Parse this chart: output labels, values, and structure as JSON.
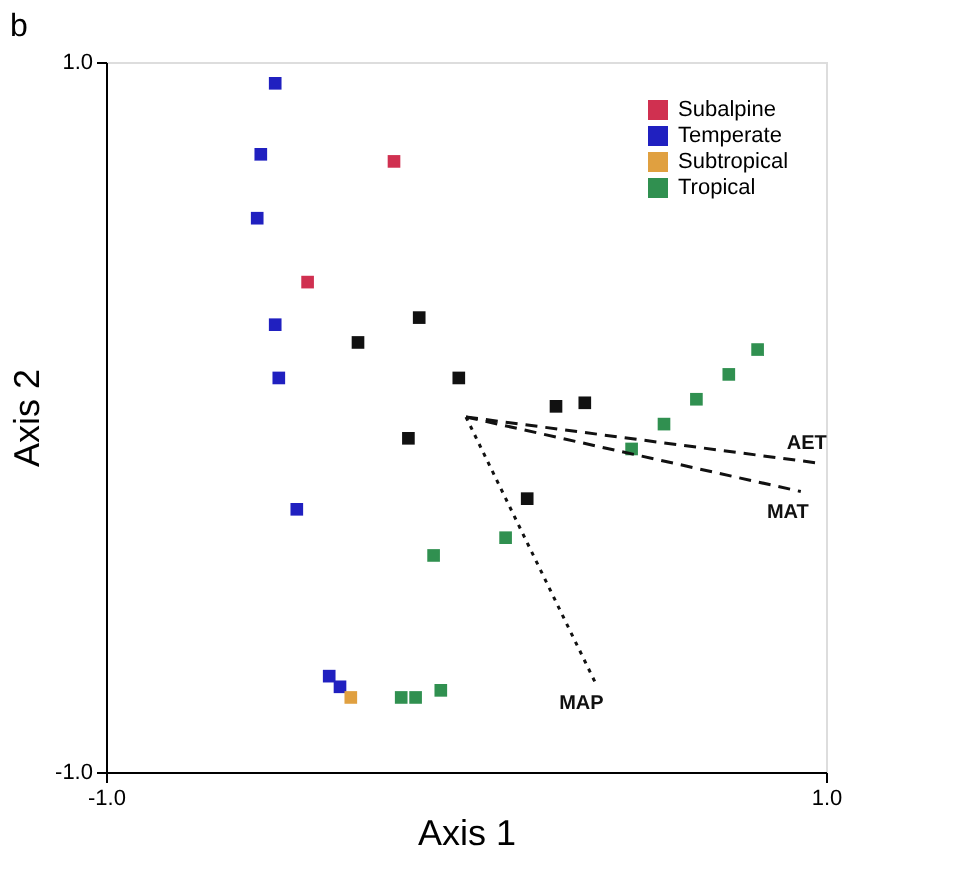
{
  "chart_data": {
    "type": "scatter",
    "title": "b",
    "xlabel": "Axis 1",
    "ylabel": "Axis 2",
    "xlim": [
      -1,
      1
    ],
    "ylim": [
      -1,
      1
    ],
    "xticks": [
      {
        "value": -1,
        "label": "-1.0"
      },
      {
        "value": 1,
        "label": "1.0"
      }
    ],
    "yticks": [
      {
        "value": -1,
        "label": "-1.0"
      },
      {
        "value": 1,
        "label": "1.0"
      }
    ],
    "legend": "top right",
    "marker": "square",
    "series": [
      {
        "name": "Subalpine",
        "color": "#d03050",
        "x": [
          -0.2,
          -0.44
        ],
        "values": [
          0.72,
          0.38
        ]
      },
      {
        "name": "Temperate",
        "color": "#2020c0",
        "x": [
          -0.53,
          -0.57,
          -0.58,
          -0.53,
          -0.52,
          -0.47,
          -0.38,
          -0.35
        ],
        "values": [
          0.94,
          0.74,
          0.56,
          0.26,
          0.11,
          -0.26,
          -0.73,
          -0.76
        ]
      },
      {
        "name": "Subtropical",
        "color": "#e0a040",
        "x": [
          -0.32
        ],
        "values": [
          -0.79
        ]
      },
      {
        "name": "Tropical",
        "color": "#309050",
        "x": [
          0.81,
          0.73,
          0.64,
          0.55,
          0.46,
          0.11,
          -0.09,
          -0.07,
          -0.14,
          -0.18
        ],
        "values": [
          0.19,
          0.12,
          0.05,
          -0.02,
          -0.09,
          -0.34,
          -0.39,
          -0.77,
          -0.79,
          -0.79
        ]
      },
      {
        "color": "#111111",
        "x": [
          -0.13,
          -0.3,
          -0.02,
          0.25,
          0.33,
          -0.16,
          0.17
        ],
        "values": [
          0.28,
          0.21,
          0.11,
          0.03,
          0.04,
          -0.06,
          -0.23
        ]
      },
      {
        "name": "AET",
        "type": "line",
        "color": "#111111",
        "line_style": "dashed",
        "marker": "none",
        "x": [
          0,
          0.98
        ],
        "values": [
          0,
          -0.13
        ]
      },
      {
        "name": "MAT",
        "type": "line",
        "color": "#111111",
        "line_style": "dashed",
        "marker": "none",
        "x": [
          0,
          0.93
        ],
        "values": [
          0,
          -0.21
        ]
      },
      {
        "name": "MAP",
        "type": "line",
        "color": "#111111",
        "line_style": "dotted",
        "marker": "none",
        "x": [
          0,
          0.36
        ],
        "values": [
          0,
          -0.75
        ]
      }
    ]
  }
}
